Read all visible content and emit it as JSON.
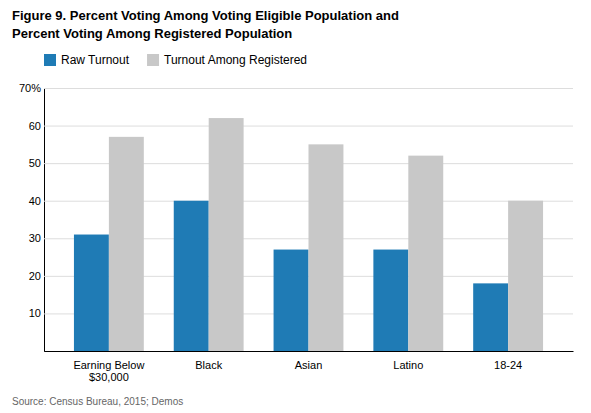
{
  "chart_data": {
    "type": "bar",
    "title": "Figure 9. Percent Voting Among Voting Eligible Population and",
    "subtitle": "Percent Voting Among Registered Population",
    "categories": [
      "Earning Below\n$30,000",
      "Black",
      "Asian",
      "Latino",
      "18-24"
    ],
    "series": [
      {
        "name": "Raw Turnout",
        "color": "#1F7BB5",
        "values": [
          31,
          40,
          27,
          27,
          18
        ]
      },
      {
        "name": "Turnout Among Registered",
        "color": "#C8C8C8",
        "values": [
          57,
          62,
          55,
          52,
          40
        ]
      }
    ],
    "ylim": [
      0,
      70
    ],
    "yticks": [
      10,
      20,
      30,
      40,
      50,
      60,
      {
        "value": 70,
        "label": "70%"
      }
    ],
    "grid": true,
    "legend": "top-left",
    "annotations": [
      "Source: Census Bureau, 2015; Demos"
    ]
  }
}
